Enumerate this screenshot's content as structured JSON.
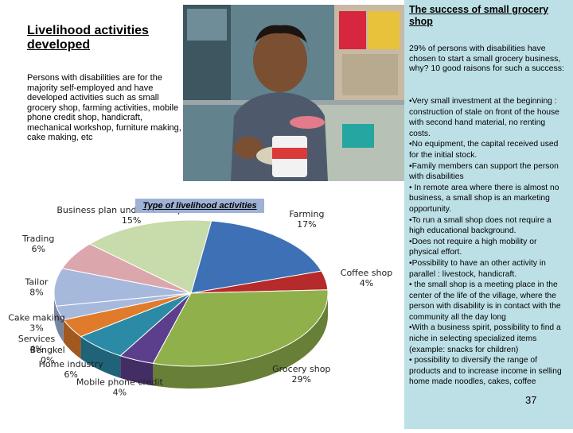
{
  "left": {
    "title": "Livelihood activities developed",
    "intro": "Persons with disabilities are for the majority self-employed and have developed activities such as small grocery shop, farming activities, mobile phone credit shop, handicraft, mechanical workshop, furniture making, cake making, etc"
  },
  "right": {
    "title": "The success of small grocery shop",
    "intro": "29% of persons with disabilities have chosen to start a small grocery business, why? 10 good raisons for such a success:",
    "reasons": [
      "•Very small investment at the beginning : construction of stale on front of the house with second hand material, no renting costs.",
      "•No equipment, the capital received used for the initial stock.",
      "•Family members can support the person with disabilities",
      "• In remote area where there is almost no business, a small shop is an marketing opportunity.",
      "•To run a small shop does not require a high educational background.",
      "•Does not require a high mobility or physical effort.",
      "•Possibility to have an other activity in parallel : livestock, handicraft.",
      "• the small shop is a meeting place in the center of the life of the village, where the person with disability is in contact with the community all the day long",
      "•With a business spirit, possibility to find a niche in selecting specialized items (example: snacks for children)",
      "• possibility to diversify the range of products and to increase income in selling home made noodles, cakes, coffee"
    ],
    "page_number": "37"
  },
  "chart_data": {
    "type": "pie",
    "title": "Type of livelihood activities",
    "slices": [
      {
        "label": "Farming",
        "value": 17,
        "display": "17%",
        "color": "#3d70b5"
      },
      {
        "label": "Coffee shop",
        "value": 4,
        "display": "4%",
        "color": "#b52a2a"
      },
      {
        "label": "Grocery shop",
        "value": 29,
        "display": "29%",
        "color": "#8fb04b"
      },
      {
        "label": "Mobile phone credit",
        "value": 4,
        "display": "4%",
        "color": "#5b3e8c"
      },
      {
        "label": "Home industry",
        "value": 6,
        "display": "6%",
        "color": "#2b8aa6"
      },
      {
        "label": "Bengkel",
        "value": 0,
        "display": "0%",
        "color": "#e07b2c"
      },
      {
        "label": "Services",
        "value": 4,
        "display": "4%",
        "color": "#e07b2c"
      },
      {
        "label": "Cake making",
        "value": 3,
        "display": "3%",
        "color": "#a6b9dc"
      },
      {
        "label": "Tailor",
        "value": 8,
        "display": "8%",
        "color": "#a6b9dc"
      },
      {
        "label": "Trading",
        "value": 6,
        "display": "6%",
        "color": "#dca6ad"
      },
      {
        "label": "Business plan under development",
        "value": 15,
        "display": "15%",
        "color": "#c8dbaa"
      }
    ]
  }
}
